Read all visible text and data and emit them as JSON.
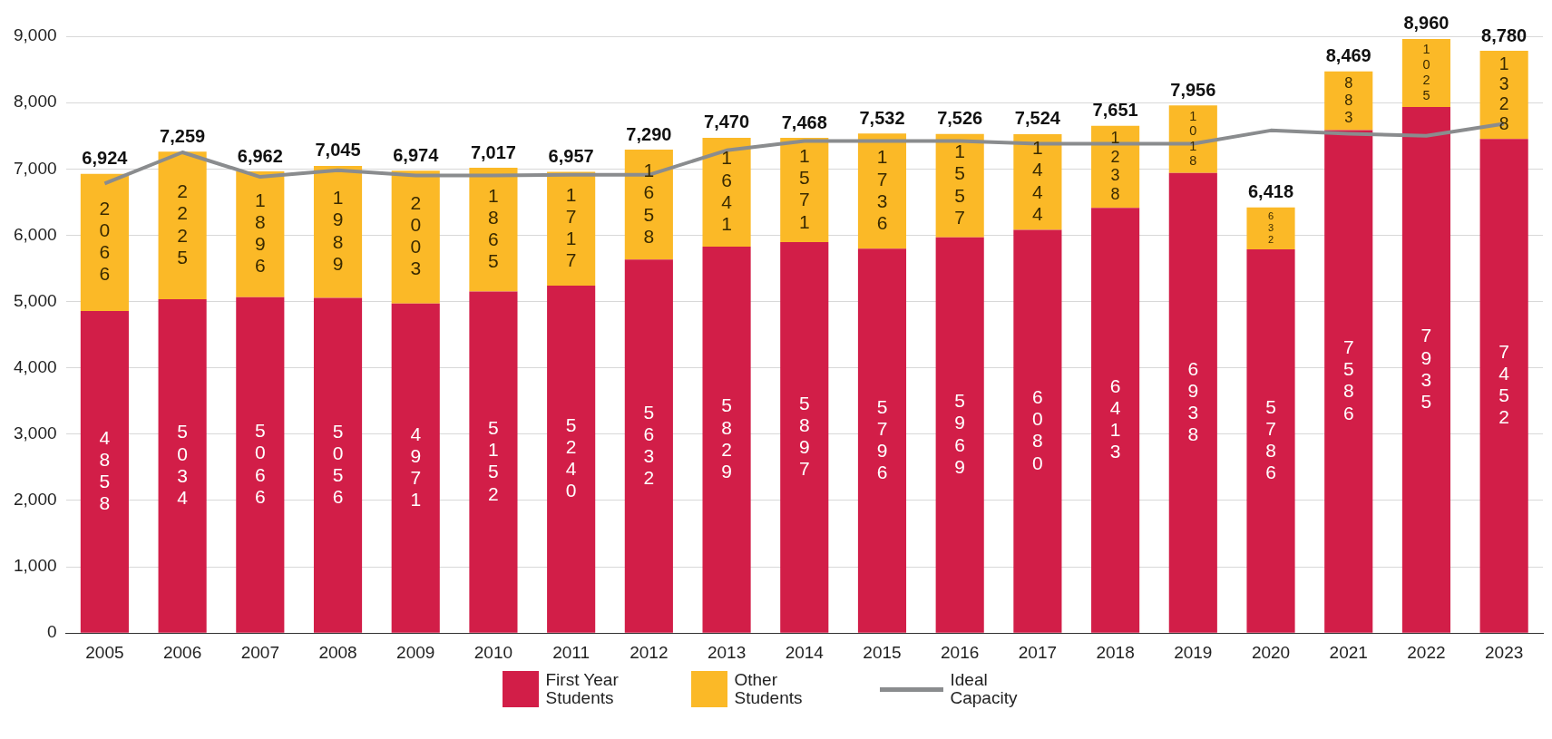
{
  "chart_data": {
    "type": "bar",
    "stacked": true,
    "categories": [
      "2005",
      "2006",
      "2007",
      "2008",
      "2009",
      "2010",
      "2011",
      "2012",
      "2013",
      "2014",
      "2015",
      "2016",
      "2017",
      "2018",
      "2019",
      "2020",
      "2021",
      "2022",
      "2023"
    ],
    "series": [
      {
        "name": "First Year Students",
        "color": "#d21e48",
        "values": [
          4858,
          5034,
          5066,
          5056,
          4971,
          5152,
          5240,
          5632,
          5829,
          5897,
          5796,
          5969,
          6080,
          6413,
          6938,
          5786,
          7586,
          7935,
          7452
        ],
        "value_labels": [
          "4858",
          "5034",
          "5066",
          "5056",
          "4971",
          "5152",
          "5240",
          "5632",
          "5829",
          "5897",
          "5796",
          "5969",
          "6080",
          "6413",
          "6938",
          "5786",
          "7586",
          "7935",
          "7452"
        ]
      },
      {
        "name": "Other Students",
        "color": "#fbb927",
        "values": [
          2066,
          2225,
          1896,
          1989,
          2003,
          1865,
          1717,
          1658,
          1641,
          1571,
          1736,
          1557,
          1444,
          1238,
          1018,
          632,
          883,
          1025,
          1328
        ],
        "value_labels": [
          "2066",
          "2225",
          "1896",
          "1989",
          "2003",
          "1865",
          "1717",
          "1658",
          "1641",
          "1571",
          "1736",
          "1557",
          "1444",
          "1238",
          "1018",
          "632",
          "883",
          "1025",
          "1328"
        ]
      },
      {
        "name": "Ideal Capacity",
        "type": "line",
        "color": "#8a8c8e",
        "values": [
          6780,
          7250,
          6880,
          6980,
          6900,
          6900,
          6910,
          6910,
          7280,
          7420,
          7420,
          7420,
          7380,
          7380,
          7380,
          7580,
          7530,
          7500,
          7680
        ]
      }
    ],
    "totals": [
      "6,924",
      "7,259",
      "6,962",
      "7,045",
      "6,974",
      "7,017",
      "6,957",
      "7,290",
      "7,470",
      "7,468",
      "7,532",
      "7,526",
      "7,524",
      "7,651",
      "7,956",
      "6,418",
      "8,469",
      "8,960",
      "8,780"
    ],
    "ylim": [
      0,
      9000
    ],
    "yticks": [
      {
        "value": 0,
        "label": "0"
      },
      {
        "value": 1000,
        "label": "1,000"
      },
      {
        "value": 2000,
        "label": "2,000"
      },
      {
        "value": 3000,
        "label": "3,000"
      },
      {
        "value": 4000,
        "label": "4,000"
      },
      {
        "value": 5000,
        "label": "5,000"
      },
      {
        "value": 6000,
        "label": "6,000"
      },
      {
        "value": 7000,
        "label": "7,000"
      },
      {
        "value": 8000,
        "label": "8,000"
      },
      {
        "value": 9000,
        "label": "9,000"
      }
    ],
    "grid": "y",
    "legend": "bottom",
    "marker": "none",
    "line_style": "solid"
  }
}
